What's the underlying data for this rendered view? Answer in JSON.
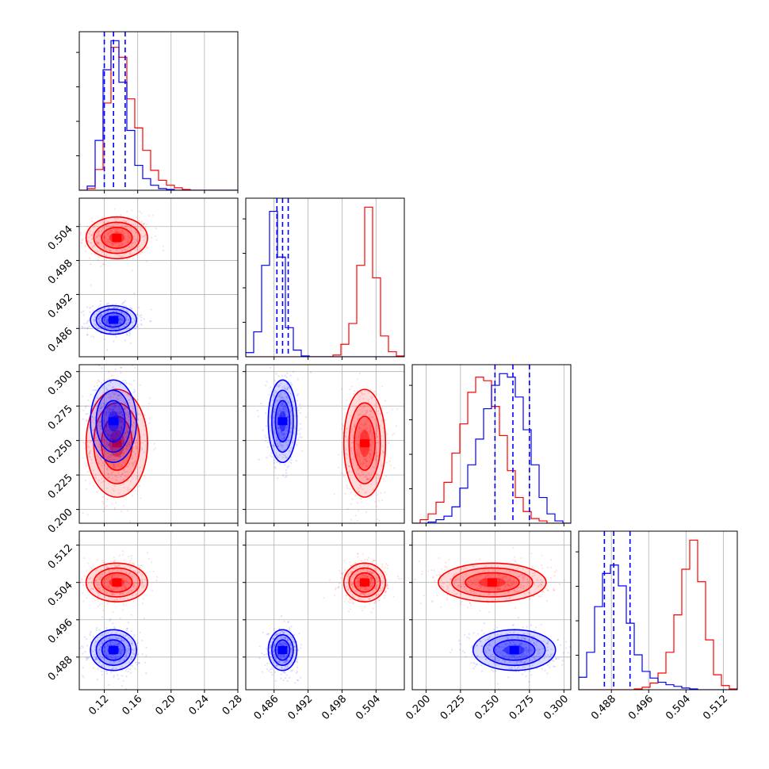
{
  "chart_data": {
    "type": "corner",
    "title": "",
    "params": [
      {
        "id": "p0",
        "range": [
          0.09,
          0.28
        ],
        "ticks": [
          "0.12",
          "0.16",
          "0.20",
          "0.24",
          "0.28"
        ],
        "tick_values": [
          0.12,
          0.16,
          0.2,
          0.24,
          0.28
        ]
      },
      {
        "id": "p1",
        "range": [
          0.481,
          0.509
        ],
        "ticks": [
          "0.486",
          "0.492",
          "0.498",
          "0.504"
        ],
        "tick_values": [
          0.486,
          0.492,
          0.498,
          0.504
        ]
      },
      {
        "id": "p2",
        "range": [
          0.19,
          0.305
        ],
        "ticks": [
          "0.200",
          "0.225",
          "0.250",
          "0.275",
          "0.300"
        ],
        "tick_values": [
          0.2,
          0.225,
          0.25,
          0.275,
          0.3
        ]
      },
      {
        "id": "p3",
        "range": [
          0.481,
          0.515
        ],
        "ticks": [
          "0.488",
          "0.496",
          "0.504",
          "0.512"
        ],
        "tick_values": [
          0.488,
          0.496,
          0.504,
          0.512
        ]
      }
    ],
    "series": [
      {
        "color": "#ff0000",
        "mean": [
          0.135,
          0.502,
          0.248,
          0.504
        ],
        "std": [
          0.016,
          0.0016,
          0.017,
          0.0018
        ]
      },
      {
        "color": "#0000ff",
        "mean": [
          0.131,
          0.4875,
          0.264,
          0.4895
        ],
        "std": [
          0.012,
          0.0011,
          0.013,
          0.0019
        ]
      }
    ],
    "quantile_lines": [
      {
        "param": 0,
        "values": [
          0.12,
          0.131,
          0.145
        ]
      },
      {
        "param": 1,
        "values": [
          0.4865,
          0.4875,
          0.4885
        ]
      },
      {
        "param": 2,
        "values": [
          0.25,
          0.263,
          0.275
        ]
      },
      {
        "param": 3,
        "values": [
          0.4865,
          0.4885,
          0.492
        ]
      }
    ],
    "histograms": [
      {
        "param": 0,
        "color": "#ff0000",
        "bin_edges": [
          0.09,
          0.0995,
          0.109,
          0.1185,
          0.128,
          0.1375,
          0.147,
          0.1565,
          0.166,
          0.1755,
          0.185,
          0.1945,
          0.204,
          0.2135,
          0.223,
          0.2325,
          0.242,
          0.2515,
          0.261,
          0.2705,
          0.28
        ],
        "counts": [
          0,
          2,
          25,
          105,
          172,
          160,
          110,
          75,
          48,
          24,
          12,
          6,
          3,
          1,
          0,
          0,
          0,
          0,
          0,
          0
        ]
      },
      {
        "param": 0,
        "color": "#0000ff",
        "bin_edges": [
          0.09,
          0.0995,
          0.109,
          0.1185,
          0.128,
          0.1375,
          0.147,
          0.1565,
          0.166,
          0.1755,
          0.185,
          0.1945,
          0.204,
          0.2135,
          0.223,
          0.2325,
          0.242,
          0.2515,
          0.261,
          0.2705,
          0.28
        ],
        "counts": [
          0,
          5,
          60,
          145,
          180,
          130,
          72,
          30,
          14,
          6,
          2,
          1,
          0,
          0,
          0,
          0,
          0,
          0,
          0,
          0
        ]
      },
      {
        "param": 1,
        "color": "#ff0000",
        "bin_edges": [
          0.481,
          0.4824,
          0.4838,
          0.4852,
          0.4866,
          0.488,
          0.4894,
          0.4908,
          0.4922,
          0.4936,
          0.495,
          0.4964,
          0.4978,
          0.4992,
          0.5006,
          0.502,
          0.5034,
          0.5048,
          0.5062,
          0.5076,
          0.509
        ],
        "counts": [
          0,
          0,
          0,
          0,
          0,
          0,
          0,
          0,
          0,
          0,
          0,
          2,
          15,
          40,
          110,
          180,
          95,
          25,
          6,
          1
        ]
      },
      {
        "param": 1,
        "color": "#0000ff",
        "bin_edges": [
          0.481,
          0.4824,
          0.4838,
          0.4852,
          0.4866,
          0.488,
          0.4894,
          0.4908,
          0.4922,
          0.4936,
          0.495,
          0.4964,
          0.4978,
          0.4992,
          0.5006,
          0.502,
          0.5034,
          0.5048,
          0.5062,
          0.5076,
          0.509
        ],
        "counts": [
          5,
          30,
          110,
          175,
          120,
          35,
          8,
          1,
          0,
          0,
          0,
          0,
          0,
          0,
          0,
          0,
          0,
          0,
          0,
          0
        ]
      },
      {
        "param": 2,
        "color": "#ff0000",
        "bin_edges": [
          0.19,
          0.19575,
          0.2015,
          0.20725,
          0.213,
          0.21875,
          0.2245,
          0.23025,
          0.236,
          0.24175,
          0.2475,
          0.25325,
          0.259,
          0.26475,
          0.2705,
          0.27625,
          0.282,
          0.28775,
          0.2935,
          0.29925,
          0.305
        ],
        "counts": [
          0,
          3,
          8,
          18,
          35,
          60,
          85,
          112,
          125,
          122,
          100,
          75,
          45,
          22,
          10,
          4,
          2,
          0,
          0,
          0
        ]
      },
      {
        "param": 2,
        "color": "#0000ff",
        "bin_edges": [
          0.19,
          0.19575,
          0.2015,
          0.20725,
          0.213,
          0.21875,
          0.2245,
          0.23025,
          0.236,
          0.24175,
          0.2475,
          0.25325,
          0.259,
          0.26475,
          0.2705,
          0.27625,
          0.282,
          0.28775,
          0.2935,
          0.29925,
          0.305
        ],
        "counts": [
          0,
          0,
          1,
          3,
          6,
          14,
          30,
          50,
          72,
          98,
          118,
          128,
          125,
          108,
          80,
          50,
          22,
          8,
          2,
          0
        ]
      },
      {
        "param": 3,
        "color": "#ff0000",
        "bin_edges": [
          0.481,
          0.4827,
          0.4844,
          0.4861,
          0.4878,
          0.4895,
          0.4912,
          0.4929,
          0.4946,
          0.4963,
          0.498,
          0.4997,
          0.5014,
          0.5031,
          0.5048,
          0.5065,
          0.5082,
          0.5099,
          0.5116,
          0.5133,
          0.515
        ],
        "counts": [
          0,
          0,
          0,
          0,
          0,
          0,
          0,
          1,
          3,
          8,
          20,
          45,
          90,
          145,
          180,
          130,
          60,
          18,
          5,
          1
        ]
      },
      {
        "param": 3,
        "color": "#0000ff",
        "bin_edges": [
          0.481,
          0.4827,
          0.4844,
          0.4861,
          0.4878,
          0.4895,
          0.4912,
          0.4929,
          0.4946,
          0.4963,
          0.498,
          0.4997,
          0.5014,
          0.5031,
          0.5048,
          0.5065,
          0.5082,
          0.5099,
          0.5116,
          0.5133,
          0.515
        ],
        "counts": [
          15,
          45,
          100,
          140,
          150,
          125,
          80,
          42,
          22,
          14,
          9,
          6,
          4,
          2,
          1,
          0,
          0,
          0,
          0,
          0
        ]
      }
    ],
    "contour_levels_sigma": [
      0.5,
      1.0,
      1.5,
      2.0
    ],
    "grid": true,
    "legend": "none"
  }
}
